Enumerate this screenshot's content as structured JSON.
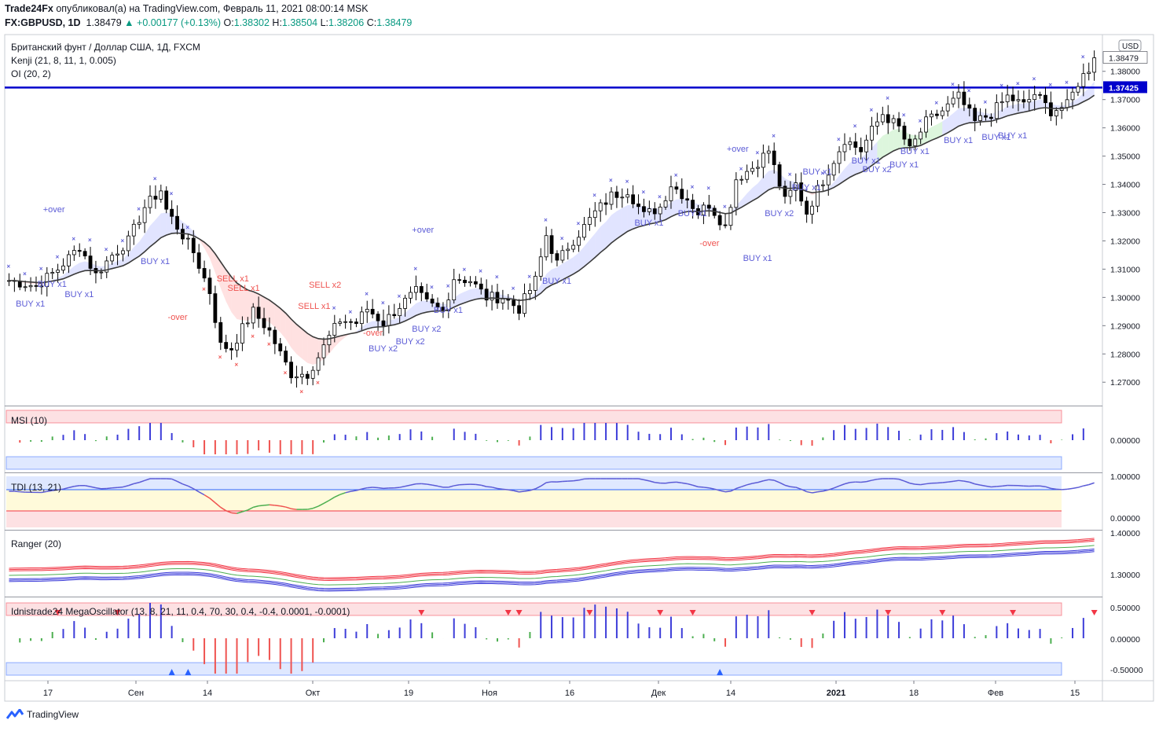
{
  "header": {
    "publisher": "Trade24Fx",
    "published_text": "опубликовал(а) на TradingView.com, Февраль 11, 2021 08:00:14 MSK",
    "symbol": "FX:GBPUSD, 1D",
    "last": "1.38479",
    "change": "+0.00177 (+0.13%)",
    "o_label": "O:",
    "o": "1.38302",
    "h_label": "H:",
    "h": "1.38504",
    "l_label": "L:",
    "l": "1.38206",
    "c_label": "C:",
    "c": "1.38479"
  },
  "legend": {
    "title": "Британский фунт / Доллар США, 1Д, FXCM",
    "kenji": "Kenji (21, 8, 11, 1, 0.005)",
    "oi": "OI (20, 2)"
  },
  "currency_badge": "USD",
  "price_badges": {
    "current": "1.38479",
    "hline": "1.37425"
  },
  "footer": {
    "brand": "TradingView"
  },
  "chart_data": [
    {
      "type": "candlestick",
      "title": "Британский фунт / Доллар США, 1Д, FXCM",
      "ylim": [
        1.262,
        1.393
      ],
      "y_ticks": [
        "1.38000",
        "1.37000",
        "1.36000",
        "1.35000",
        "1.34000",
        "1.33000",
        "1.32000",
        "1.31000",
        "1.30000",
        "1.29000",
        "1.28000",
        "1.27000"
      ],
      "x_ticks": [
        "17",
        "Сен",
        "14",
        "Окт",
        "19",
        "Ноя",
        "16",
        "Дек",
        "14",
        "2021",
        "18",
        "Фев",
        "15"
      ],
      "horizontal_line": 1.37425,
      "close_path": [
        [
          0,
          1.306
        ],
        [
          5,
          1.304
        ],
        [
          9,
          1.31
        ],
        [
          13,
          1.318
        ],
        [
          16,
          1.308
        ],
        [
          19,
          1.315
        ],
        [
          22,
          1.32
        ],
        [
          25,
          1.332
        ],
        [
          28,
          1.338
        ],
        [
          29,
          1.331
        ],
        [
          31,
          1.325
        ],
        [
          34,
          1.316
        ],
        [
          37,
          1.302
        ],
        [
          39,
          1.283
        ],
        [
          41,
          1.282
        ],
        [
          43,
          1.289
        ],
        [
          45,
          1.295
        ],
        [
          48,
          1.288
        ],
        [
          50,
          1.28
        ],
        [
          52,
          1.273
        ],
        [
          55,
          1.273
        ],
        [
          57,
          1.279
        ],
        [
          59,
          1.286
        ],
        [
          61,
          1.292
        ],
        [
          64,
          1.291
        ],
        [
          66,
          1.296
        ],
        [
          69,
          1.291
        ],
        [
          72,
          1.297
        ],
        [
          75,
          1.302
        ],
        [
          77,
          1.298
        ],
        [
          80,
          1.295
        ],
        [
          82,
          1.307
        ],
        [
          85,
          1.306
        ],
        [
          88,
          1.3
        ],
        [
          91,
          1.3
        ],
        [
          94,
          1.296
        ],
        [
          97,
          1.306
        ],
        [
          99,
          1.322
        ],
        [
          101,
          1.312
        ],
        [
          103,
          1.318
        ],
        [
          106,
          1.325
        ],
        [
          108,
          1.33
        ],
        [
          111,
          1.336
        ],
        [
          114,
          1.338
        ],
        [
          117,
          1.329
        ],
        [
          120,
          1.332
        ],
        [
          122,
          1.34
        ],
        [
          125,
          1.335
        ],
        [
          127,
          1.33
        ],
        [
          129,
          1.333
        ],
        [
          132,
          1.325
        ],
        [
          134,
          1.342
        ],
        [
          137,
          1.346
        ],
        [
          140,
          1.352
        ],
        [
          143,
          1.334
        ],
        [
          145,
          1.34
        ],
        [
          147,
          1.33
        ],
        [
          149,
          1.338
        ],
        [
          151,
          1.345
        ],
        [
          154,
          1.356
        ],
        [
          157,
          1.352
        ],
        [
          159,
          1.359
        ],
        [
          161,
          1.365
        ],
        [
          164,
          1.36
        ],
        [
          166,
          1.352
        ],
        [
          169,
          1.362
        ],
        [
          172,
          1.366
        ],
        [
          175,
          1.371
        ],
        [
          178,
          1.362
        ],
        [
          181,
          1.365
        ],
        [
          184,
          1.371
        ],
        [
          187,
          1.368
        ],
        [
          189,
          1.372
        ],
        [
          192,
          1.366
        ],
        [
          195,
          1.368
        ],
        [
          197,
          1.376
        ],
        [
          199,
          1.381
        ],
        [
          200,
          1.3848
        ]
      ],
      "signals": [
        "BUY x1",
        "SELL x1",
        "SELL x2",
        "BUY x2",
        "+over",
        "-over"
      ]
    },
    {
      "type": "bar",
      "title": "MSI (10)",
      "y_ticks": [
        "0.00000"
      ]
    },
    {
      "type": "line",
      "title": "TDI (13, 21)",
      "y_ticks": [
        "1.00000",
        "0.00000"
      ]
    },
    {
      "type": "line",
      "title": "Ranger (20)",
      "y_ticks": [
        "1.40000",
        "1.30000"
      ]
    },
    {
      "type": "bar",
      "title": "Idnistrade24 MegaOscillator (13, 8, 21, 11, 0.4, 70, 30, 0.4, -0.4, 0.0001, -0.0001)",
      "y_ticks": [
        "0.50000",
        "0.00000",
        "-0.50000"
      ]
    }
  ],
  "colors": {
    "up": "#ffffff",
    "down": "#000000",
    "blue": "#2962ff",
    "hline": "#0000cc",
    "buy": "#5b5bd6",
    "sell": "#ef5350",
    "green": "#4caf50",
    "red": "#f23645"
  }
}
